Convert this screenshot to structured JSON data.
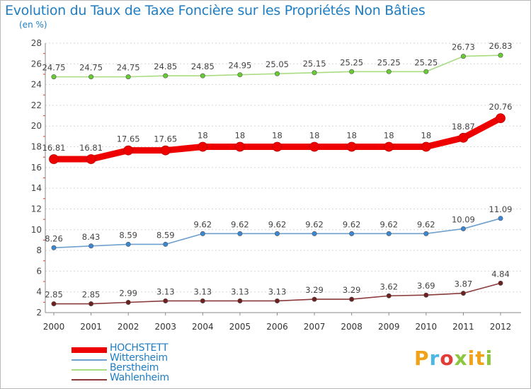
{
  "title": "Evolution du Taux de Taxe Foncière sur les Propriétés Non Bâties",
  "unit_label": "(en %)",
  "logo_text": "Proxiti",
  "logo_colors": [
    "#f0a318",
    "#4db6e4",
    "#e23c36",
    "#8cc63e",
    "#f0a318",
    "#f0a318",
    "#8cc63e"
  ],
  "chart_data": {
    "type": "line",
    "title": "Evolution du Taux de Taxe Foncière sur les Propriétés Non Bâties",
    "ylabel": "(en %)",
    "xlabel": "",
    "ylim": [
      2,
      28
    ],
    "yticks": [
      2,
      4,
      6,
      8,
      10,
      12,
      14,
      16,
      18,
      20,
      22,
      24,
      26,
      28
    ],
    "grid": "horizontal dotted",
    "legend_position": "bottom-left",
    "categories": [
      "2000",
      "2001",
      "2002",
      "2003",
      "2004",
      "2005",
      "2006",
      "2007",
      "2008",
      "2009",
      "2010",
      "2011",
      "2012"
    ],
    "series": [
      {
        "name": "HOCHSTETT",
        "color": "#ee0000",
        "marker_color": "#ee0000",
        "emphasis": "thick",
        "values": [
          16.81,
          16.81,
          17.65,
          17.65,
          18,
          18,
          18,
          18,
          18,
          18,
          18,
          18.87,
          20.76
        ],
        "labels": [
          "16.81",
          "16.81",
          "17.65",
          "17.65",
          "18",
          "18",
          "18",
          "18",
          "18",
          "18",
          "18",
          "18.87",
          "20.76"
        ]
      },
      {
        "name": "Wittersheim",
        "color": "#6fa0cf",
        "marker_color": "#3a88d4",
        "emphasis": "normal",
        "values": [
          8.26,
          8.43,
          8.59,
          8.59,
          9.62,
          9.62,
          9.62,
          9.62,
          9.62,
          9.62,
          9.62,
          10.09,
          11.09
        ],
        "labels": [
          "8.26",
          "8.43",
          "8.59",
          "8.59",
          "9.62",
          "9.62",
          "9.62",
          "9.62",
          "9.62",
          "9.62",
          "9.62",
          "10.09",
          "11.09"
        ]
      },
      {
        "name": "Berstheim",
        "color": "#a9dc80",
        "marker_color": "#66cc33",
        "emphasis": "normal",
        "values": [
          24.75,
          24.75,
          24.75,
          24.85,
          24.85,
          24.95,
          25.05,
          25.15,
          25.25,
          25.25,
          25.25,
          26.73,
          26.83
        ],
        "labels": [
          "24.75",
          "24.75",
          "24.75",
          "24.85",
          "24.85",
          "24.95",
          "25.05",
          "25.15",
          "25.25",
          "25.25",
          "25.25",
          "26.73",
          "26.83"
        ]
      },
      {
        "name": "Wahlenheim",
        "color": "#8a3a3a",
        "marker_color": "#6e1f1f",
        "emphasis": "normal",
        "values": [
          2.85,
          2.85,
          2.99,
          3.13,
          3.13,
          3.13,
          3.13,
          3.29,
          3.29,
          3.62,
          3.69,
          3.87,
          4.84
        ],
        "labels": [
          "2.85",
          "2.85",
          "2.99",
          "3.13",
          "3.13",
          "3.13",
          "3.13",
          "3.29",
          "3.29",
          "3.62",
          "3.69",
          "3.87",
          "4.84"
        ]
      }
    ]
  }
}
